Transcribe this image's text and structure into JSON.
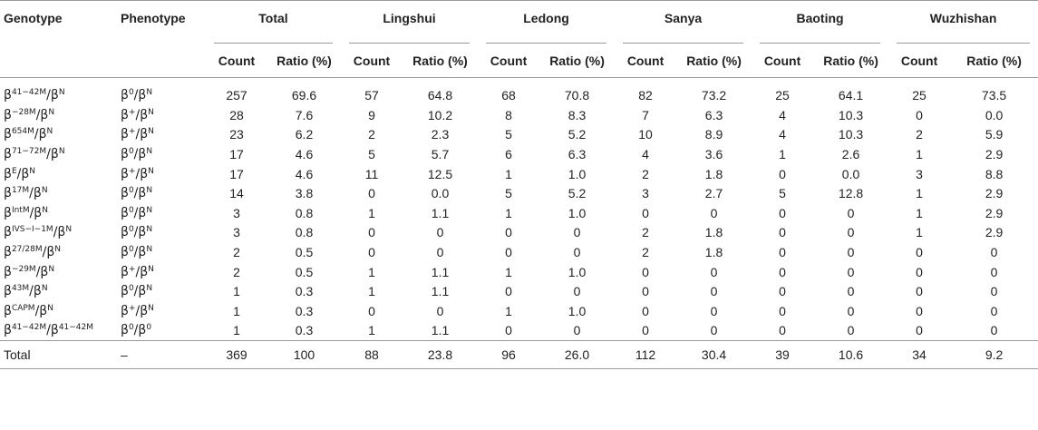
{
  "headers": {
    "genotype": "Genotype",
    "phenotype": "Phenotype",
    "groups": [
      "Total",
      "Lingshui",
      "Ledong",
      "Sanya",
      "Baoting",
      "Wuzhishan"
    ],
    "count": "Count",
    "ratio": "Ratio (%)"
  },
  "rows": [
    {
      "g_sup": "41−42M",
      "g_tail": "/β",
      "g_sup2": "N",
      "p_sup": "0",
      "p_tail": "/β",
      "p_sup2": "N",
      "values": [
        "257",
        "69.6",
        "57",
        "64.8",
        "68",
        "70.8",
        "82",
        "73.2",
        "25",
        "64.1",
        "25",
        "73.5"
      ]
    },
    {
      "g_sup": "−28M",
      "g_tail": "/β",
      "g_sup2": "N",
      "p_sup": "+",
      "p_tail": "/β",
      "p_sup2": "N",
      "values": [
        "28",
        "7.6",
        "9",
        "10.2",
        "8",
        "8.3",
        "7",
        "6.3",
        "4",
        "10.3",
        "0",
        "0.0"
      ]
    },
    {
      "g_sup": "654M",
      "g_tail": "/β",
      "g_sup2": "N",
      "p_sup": "+",
      "p_tail": "/β",
      "p_sup2": "N",
      "values": [
        "23",
        "6.2",
        "2",
        "2.3",
        "5",
        "5.2",
        "10",
        "8.9",
        "4",
        "10.3",
        "2",
        "5.9"
      ]
    },
    {
      "g_sup": "71−72M",
      "g_tail": "/β",
      "g_sup2": "N",
      "p_sup": "0",
      "p_tail": "/β",
      "p_sup2": "N",
      "values": [
        "17",
        "4.6",
        "5",
        "5.7",
        "6",
        "6.3",
        "4",
        "3.6",
        "1",
        "2.6",
        "1",
        "2.9"
      ]
    },
    {
      "g_sup": "E",
      "g_tail": "/β",
      "g_sup2": "N",
      "p_sup": "+",
      "p_tail": "/β",
      "p_sup2": "N",
      "values": [
        "17",
        "4.6",
        "11",
        "12.5",
        "1",
        "1.0",
        "2",
        "1.8",
        "0",
        "0.0",
        "3",
        "8.8"
      ]
    },
    {
      "g_sup": "17M",
      "g_tail": "/β",
      "g_sup2": "N",
      "p_sup": "0",
      "p_tail": "/β",
      "p_sup2": "N",
      "values": [
        "14",
        "3.8",
        "0",
        "0.0",
        "5",
        "5.2",
        "3",
        "2.7",
        "5",
        "12.8",
        "1",
        "2.9"
      ]
    },
    {
      "g_sup": "IntM",
      "g_tail": "/β",
      "g_sup2": "N",
      "p_sup": "0",
      "p_tail": "/β",
      "p_sup2": "N",
      "values": [
        "3",
        "0.8",
        "1",
        "1.1",
        "1",
        "1.0",
        "0",
        "0",
        "0",
        "0",
        "1",
        "2.9"
      ]
    },
    {
      "g_sup": "IVS−I−1M",
      "g_tail": "/β",
      "g_sup2": "N",
      "p_sup": "0",
      "p_tail": "/β",
      "p_sup2": "N",
      "values": [
        "3",
        "0.8",
        "0",
        "0",
        "0",
        "0",
        "2",
        "1.8",
        "0",
        "0",
        "1",
        "2.9"
      ]
    },
    {
      "g_sup": "27/28M",
      "g_tail": "/β",
      "g_sup2": "N",
      "p_sup": "0",
      "p_tail": "/β",
      "p_sup2": "N",
      "values": [
        "2",
        "0.5",
        "0",
        "0",
        "0",
        "0",
        "2",
        "1.8",
        "0",
        "0",
        "0",
        "0"
      ]
    },
    {
      "g_sup": "−29M",
      "g_tail": "/β",
      "g_sup2": "N",
      "p_sup": "+",
      "p_tail": "/β",
      "p_sup2": "N",
      "values": [
        "2",
        "0.5",
        "1",
        "1.1",
        "1",
        "1.0",
        "0",
        "0",
        "0",
        "0",
        "0",
        "0"
      ]
    },
    {
      "g_sup": "43M",
      "g_tail": "/β",
      "g_sup2": "N",
      "p_sup": "0",
      "p_tail": "/β",
      "p_sup2": "N",
      "values": [
        "1",
        "0.3",
        "1",
        "1.1",
        "0",
        "0",
        "0",
        "0",
        "0",
        "0",
        "0",
        "0"
      ]
    },
    {
      "g_sup": "CAPM",
      "g_tail": "/β",
      "g_sup2": "N",
      "p_sup": "+",
      "p_tail": "/β",
      "p_sup2": "N",
      "values": [
        "1",
        "0.3",
        "0",
        "0",
        "1",
        "1.0",
        "0",
        "0",
        "0",
        "0",
        "0",
        "0"
      ]
    },
    {
      "g_sup": "41−42M",
      "g_tail": "/β",
      "g_sup2": "41−42M",
      "p_sup": "0",
      "p_tail": "/β",
      "p_sup2": "0",
      "values": [
        "1",
        "0.3",
        "1",
        "1.1",
        "0",
        "0",
        "0",
        "0",
        "0",
        "0",
        "0",
        "0"
      ]
    }
  ],
  "total_row": {
    "label": "Total",
    "phenotype": "–",
    "values": [
      "369",
      "100",
      "88",
      "23.8",
      "96",
      "26.0",
      "112",
      "30.4",
      "39",
      "10.6",
      "34",
      "9.2"
    ]
  }
}
